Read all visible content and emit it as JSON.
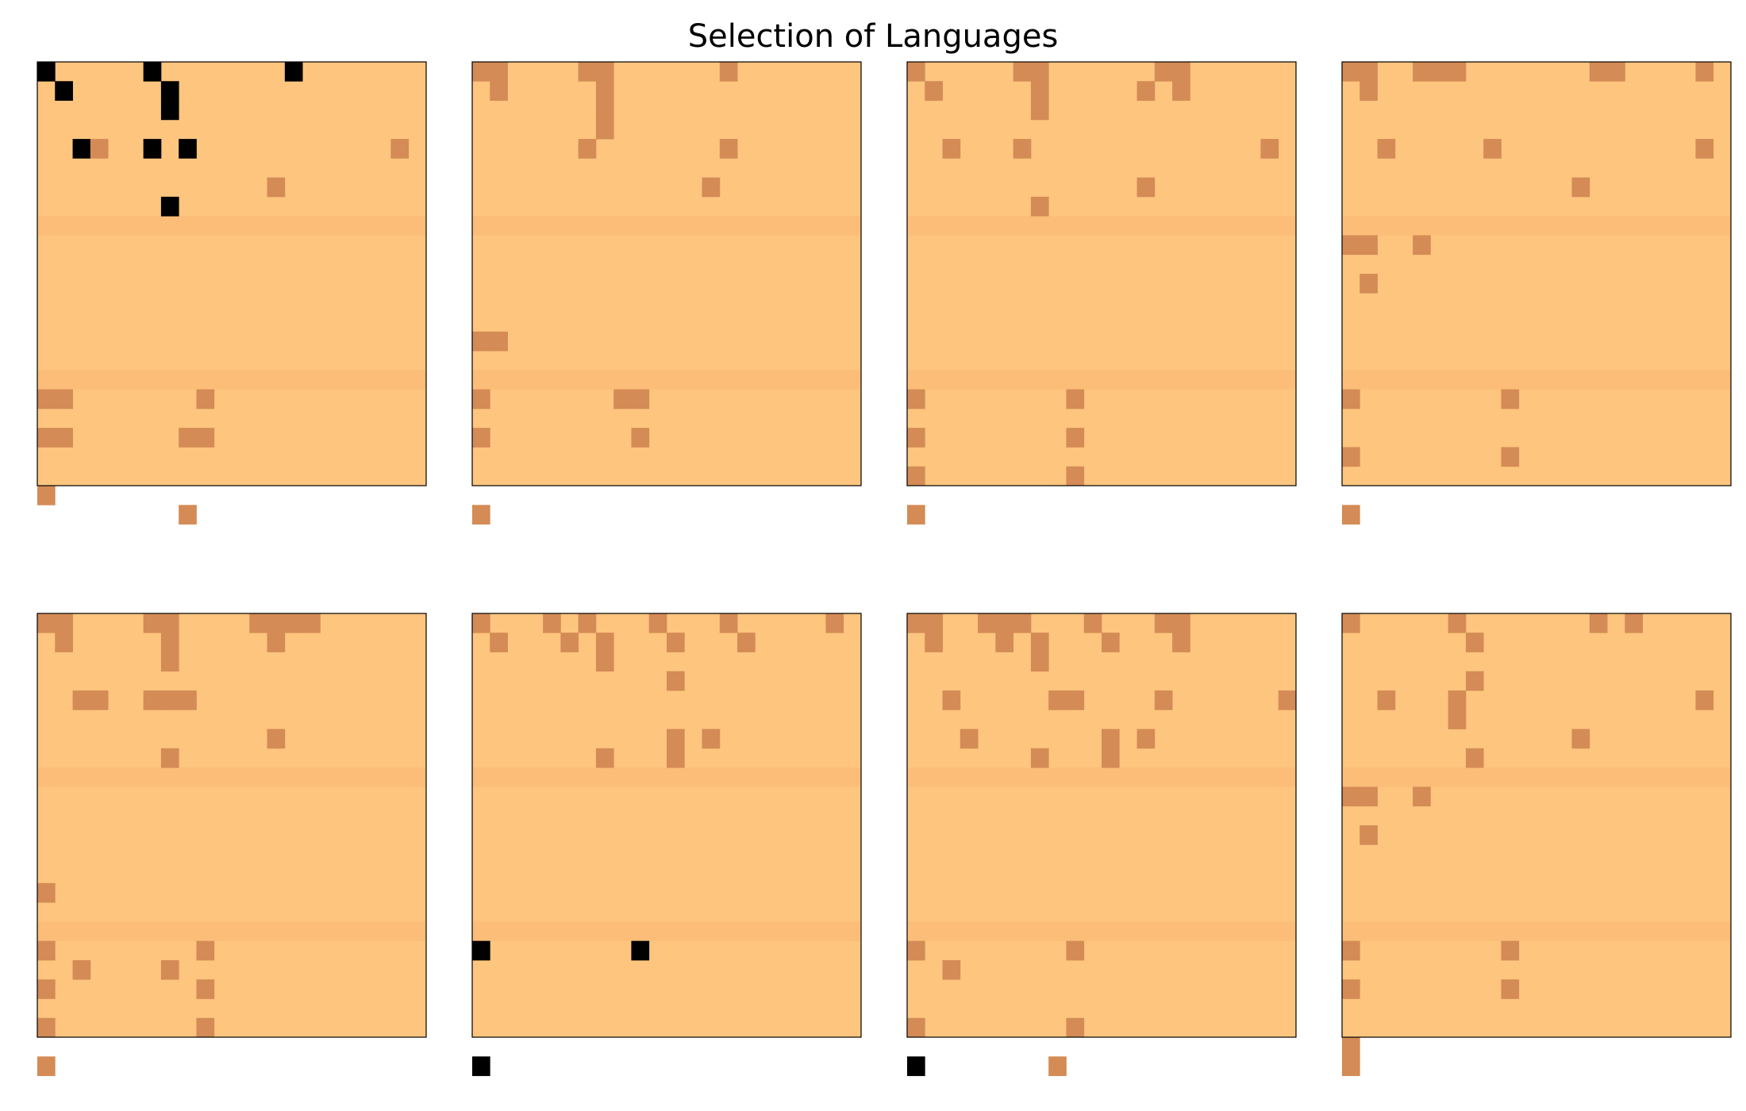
{
  "chart_data": {
    "type": "heatmap",
    "title": "Selection of Languages",
    "grid_size": 22,
    "legend": "none",
    "colors": {
      "background": "#FDC57E",
      "band": "#FBBD78",
      "marked": "#D48B55",
      "selected": "#000000"
    },
    "value_key": {
      "0": "background",
      "1": "marked",
      "2": "selected"
    },
    "band_rows": [
      8,
      16
    ],
    "panels": [
      {
        "cells": [
          [
            0,
            0,
            2
          ],
          [
            6,
            0,
            2
          ],
          [
            14,
            0,
            2
          ],
          [
            1,
            1,
            2
          ],
          [
            7,
            1,
            2
          ],
          [
            7,
            2,
            2
          ],
          [
            2,
            4,
            2
          ],
          [
            3,
            4,
            1
          ],
          [
            6,
            4,
            2
          ],
          [
            8,
            4,
            2
          ],
          [
            20,
            4,
            1
          ],
          [
            13,
            6,
            1
          ],
          [
            7,
            7,
            2
          ],
          [
            0,
            17,
            1
          ],
          [
            1,
            17,
            1
          ],
          [
            9,
            17,
            1
          ],
          [
            0,
            19,
            1
          ],
          [
            1,
            19,
            1
          ],
          [
            8,
            19,
            1
          ],
          [
            9,
            19,
            1
          ],
          [
            0,
            22,
            1
          ],
          [
            8,
            23,
            1
          ]
        ]
      },
      {
        "cells": [
          [
            0,
            0,
            1
          ],
          [
            1,
            0,
            1
          ],
          [
            6,
            0,
            1
          ],
          [
            7,
            0,
            1
          ],
          [
            14,
            0,
            1
          ],
          [
            1,
            1,
            1
          ],
          [
            7,
            1,
            1
          ],
          [
            7,
            2,
            1
          ],
          [
            7,
            3,
            1
          ],
          [
            6,
            4,
            1
          ],
          [
            14,
            4,
            1
          ],
          [
            13,
            6,
            1
          ],
          [
            0,
            14,
            1
          ],
          [
            1,
            14,
            1
          ],
          [
            0,
            17,
            1
          ],
          [
            8,
            17,
            1
          ],
          [
            9,
            17,
            1
          ],
          [
            0,
            19,
            1
          ],
          [
            9,
            19,
            1
          ],
          [
            0,
            23,
            1
          ]
        ]
      },
      {
        "cells": [
          [
            0,
            0,
            1
          ],
          [
            6,
            0,
            1
          ],
          [
            7,
            0,
            1
          ],
          [
            14,
            0,
            1
          ],
          [
            15,
            0,
            1
          ],
          [
            1,
            1,
            1
          ],
          [
            7,
            1,
            1
          ],
          [
            13,
            1,
            1
          ],
          [
            15,
            1,
            1
          ],
          [
            7,
            2,
            1
          ],
          [
            2,
            4,
            1
          ],
          [
            6,
            4,
            1
          ],
          [
            20,
            4,
            1
          ],
          [
            13,
            6,
            1
          ],
          [
            7,
            7,
            1
          ],
          [
            0,
            17,
            1
          ],
          [
            9,
            17,
            1
          ],
          [
            0,
            19,
            1
          ],
          [
            9,
            19,
            1
          ],
          [
            0,
            21,
            1
          ],
          [
            9,
            21,
            1
          ],
          [
            0,
            23,
            1
          ]
        ]
      },
      {
        "cells": [
          [
            0,
            0,
            1
          ],
          [
            1,
            0,
            1
          ],
          [
            4,
            0,
            1
          ],
          [
            5,
            0,
            1
          ],
          [
            6,
            0,
            1
          ],
          [
            14,
            0,
            1
          ],
          [
            15,
            0,
            1
          ],
          [
            20,
            0,
            1
          ],
          [
            1,
            1,
            1
          ],
          [
            2,
            4,
            1
          ],
          [
            8,
            4,
            1
          ],
          [
            20,
            4,
            1
          ],
          [
            13,
            6,
            1
          ],
          [
            0,
            9,
            1
          ],
          [
            1,
            9,
            1
          ],
          [
            4,
            9,
            1
          ],
          [
            1,
            11,
            1
          ],
          [
            0,
            17,
            1
          ],
          [
            9,
            17,
            1
          ],
          [
            0,
            20,
            1
          ],
          [
            9,
            20,
            1
          ],
          [
            0,
            23,
            1
          ]
        ]
      },
      {
        "cells": [
          [
            0,
            0,
            1
          ],
          [
            1,
            0,
            1
          ],
          [
            6,
            0,
            1
          ],
          [
            7,
            0,
            1
          ],
          [
            12,
            0,
            1
          ],
          [
            13,
            0,
            1
          ],
          [
            14,
            0,
            1
          ],
          [
            15,
            0,
            1
          ],
          [
            1,
            1,
            1
          ],
          [
            7,
            1,
            1
          ],
          [
            13,
            1,
            1
          ],
          [
            7,
            2,
            1
          ],
          [
            2,
            4,
            1
          ],
          [
            3,
            4,
            1
          ],
          [
            6,
            4,
            1
          ],
          [
            7,
            4,
            1
          ],
          [
            8,
            4,
            1
          ],
          [
            13,
            6,
            1
          ],
          [
            7,
            7,
            1
          ],
          [
            0,
            14,
            1
          ],
          [
            0,
            17,
            1
          ],
          [
            9,
            17,
            1
          ],
          [
            2,
            18,
            1
          ],
          [
            7,
            18,
            1
          ],
          [
            0,
            19,
            1
          ],
          [
            9,
            19,
            1
          ],
          [
            0,
            21,
            1
          ],
          [
            9,
            21,
            1
          ],
          [
            0,
            23,
            1
          ]
        ]
      },
      {
        "cells": [
          [
            0,
            0,
            1
          ],
          [
            4,
            0,
            1
          ],
          [
            6,
            0,
            1
          ],
          [
            10,
            0,
            1
          ],
          [
            14,
            0,
            1
          ],
          [
            20,
            0,
            1
          ],
          [
            1,
            1,
            1
          ],
          [
            5,
            1,
            1
          ],
          [
            7,
            1,
            1
          ],
          [
            11,
            1,
            1
          ],
          [
            15,
            1,
            1
          ],
          [
            7,
            2,
            1
          ],
          [
            11,
            3,
            1
          ],
          [
            11,
            6,
            1
          ],
          [
            13,
            6,
            1
          ],
          [
            11,
            7,
            1
          ],
          [
            7,
            7,
            1
          ],
          [
            0,
            17,
            2
          ],
          [
            9,
            17,
            2
          ],
          [
            0,
            23,
            2
          ]
        ]
      },
      {
        "cells": [
          [
            0,
            0,
            1
          ],
          [
            1,
            0,
            1
          ],
          [
            4,
            0,
            1
          ],
          [
            5,
            0,
            1
          ],
          [
            6,
            0,
            1
          ],
          [
            10,
            0,
            1
          ],
          [
            14,
            0,
            1
          ],
          [
            15,
            0,
            1
          ],
          [
            1,
            1,
            1
          ],
          [
            5,
            1,
            1
          ],
          [
            7,
            1,
            1
          ],
          [
            11,
            1,
            1
          ],
          [
            15,
            1,
            1
          ],
          [
            7,
            2,
            1
          ],
          [
            2,
            4,
            1
          ],
          [
            8,
            4,
            1
          ],
          [
            9,
            4,
            1
          ],
          [
            14,
            4,
            1
          ],
          [
            21,
            4,
            1
          ],
          [
            3,
            6,
            1
          ],
          [
            11,
            6,
            1
          ],
          [
            13,
            6,
            1
          ],
          [
            7,
            7,
            1
          ],
          [
            11,
            7,
            1
          ],
          [
            0,
            17,
            1
          ],
          [
            9,
            17,
            1
          ],
          [
            2,
            18,
            1
          ],
          [
            0,
            21,
            1
          ],
          [
            9,
            21,
            1
          ],
          [
            0,
            23,
            2
          ],
          [
            8,
            23,
            1
          ]
        ]
      },
      {
        "cells": [
          [
            0,
            0,
            1
          ],
          [
            6,
            0,
            1
          ],
          [
            14,
            0,
            1
          ],
          [
            16,
            0,
            1
          ],
          [
            7,
            1,
            1
          ],
          [
            7,
            3,
            1
          ],
          [
            2,
            4,
            1
          ],
          [
            6,
            4,
            1
          ],
          [
            20,
            4,
            1
          ],
          [
            6,
            5,
            1
          ],
          [
            13,
            6,
            1
          ],
          [
            7,
            7,
            1
          ],
          [
            0,
            9,
            1
          ],
          [
            1,
            9,
            1
          ],
          [
            4,
            9,
            1
          ],
          [
            1,
            11,
            1
          ],
          [
            0,
            17,
            1
          ],
          [
            9,
            17,
            1
          ],
          [
            0,
            19,
            1
          ],
          [
            9,
            19,
            1
          ],
          [
            0,
            22,
            1
          ],
          [
            0,
            23,
            1
          ]
        ]
      }
    ]
  }
}
